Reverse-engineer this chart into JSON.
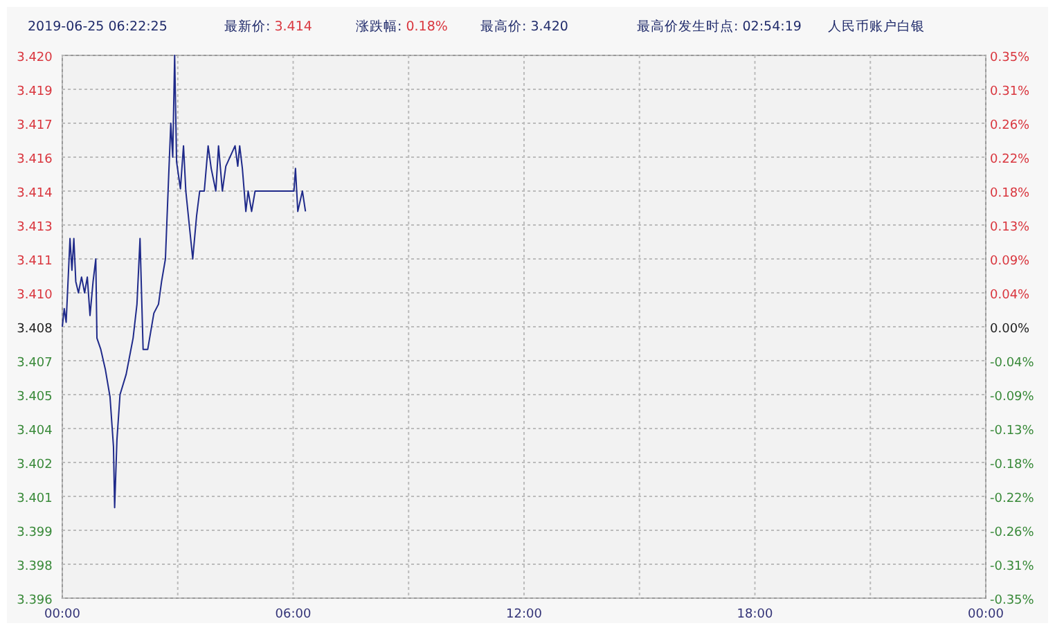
{
  "chart_data": {
    "type": "line",
    "title": "人民币账户白银",
    "annotations": [
      "2019-06-25 06:22:25",
      "最新价: 3.414",
      "涨跌幅: 0.18%",
      "最高价: 3.420",
      "最高价发生时点: 02:54:19"
    ],
    "xlim": [
      0,
      24
    ],
    "xticks": [
      {
        "value": 0,
        "label": "00:00"
      },
      {
        "value": 3,
        "label": null
      },
      {
        "value": 6,
        "label": "06:00"
      },
      {
        "value": 9,
        "label": null
      },
      {
        "value": 12,
        "label": "12:00"
      },
      {
        "value": 15,
        "label": null
      },
      {
        "value": 18,
        "label": "18:00"
      },
      {
        "value": 21,
        "label": null
      },
      {
        "value": 24,
        "label": "00:00"
      }
    ],
    "ylim": [
      3.396,
      3.42
    ],
    "yticks": [
      {
        "value": 3.396,
        "label": "3.396"
      },
      {
        "value": 3.3975,
        "label": "3.398"
      },
      {
        "value": 3.399,
        "label": "3.399"
      },
      {
        "value": 3.4005,
        "label": "3.401"
      },
      {
        "value": 3.402,
        "label": "3.402"
      },
      {
        "value": 3.4035,
        "label": "3.404"
      },
      {
        "value": 3.405,
        "label": "3.405"
      },
      {
        "value": 3.4065,
        "label": "3.407"
      },
      {
        "value": 3.408,
        "label": "3.408"
      },
      {
        "value": 3.4095,
        "label": "3.410"
      },
      {
        "value": 3.411,
        "label": "3.411"
      },
      {
        "value": 3.4125,
        "label": "3.413"
      },
      {
        "value": 3.414,
        "label": "3.414"
      },
      {
        "value": 3.4155,
        "label": "3.416"
      },
      {
        "value": 3.417,
        "label": "3.417"
      },
      {
        "value": 3.4185,
        "label": "3.419"
      },
      {
        "value": 3.42,
        "label": "3.420"
      }
    ],
    "y2lim": [
      -0.35,
      0.35
    ],
    "y2ticks": [
      {
        "value": -0.35,
        "label": "-0.35%"
      },
      {
        "value": -0.30625,
        "label": "-0.31%"
      },
      {
        "value": -0.2625,
        "label": "-0.26%"
      },
      {
        "value": -0.21875,
        "label": "-0.22%"
      },
      {
        "value": -0.175,
        "label": "-0.18%"
      },
      {
        "value": -0.13125,
        "label": "-0.13%"
      },
      {
        "value": -0.0875,
        "label": "-0.09%"
      },
      {
        "value": -0.04375,
        "label": "-0.04%"
      },
      {
        "value": 0,
        "label": "0.00%"
      },
      {
        "value": 0.04375,
        "label": "0.04%"
      },
      {
        "value": 0.0875,
        "label": "0.09%"
      },
      {
        "value": 0.13125,
        "label": "0.13%"
      },
      {
        "value": 0.175,
        "label": "0.18%"
      },
      {
        "value": 0.21875,
        "label": "0.22%"
      },
      {
        "value": 0.2625,
        "label": "0.26%"
      },
      {
        "value": 0.30625,
        "label": "0.31%"
      },
      {
        "value": 0.35,
        "label": "0.35%"
      }
    ],
    "grid": true,
    "series": [
      {
        "color": "#1f2a8a",
        "x": [
          0,
          0.05,
          0.1,
          0.2,
          0.25,
          0.3,
          0.35,
          0.42,
          0.5,
          0.58,
          0.65,
          0.72,
          0.8,
          0.87,
          0.9,
          1.0,
          1.12,
          1.24,
          1.33,
          1.36,
          1.42,
          1.5,
          1.66,
          1.84,
          1.94,
          2.02,
          2.1,
          2.22,
          2.38,
          2.5,
          2.58,
          2.68,
          2.77,
          2.82,
          2.87,
          2.92,
          2.97,
          3.07,
          3.15,
          3.21,
          3.39,
          3.49,
          3.57,
          3.69,
          3.79,
          3.87,
          3.99,
          4.06,
          4.16,
          4.25,
          4.49,
          4.56,
          4.61,
          4.68,
          4.77,
          4.83,
          4.92,
          5.01,
          6.02,
          6.06,
          6.12,
          6.24,
          6.32
        ],
        "values": [
          3.408,
          3.4088,
          3.4082,
          3.4119,
          3.4105,
          3.4119,
          3.41,
          3.4095,
          3.4102,
          3.4095,
          3.4102,
          3.4085,
          3.41,
          3.411,
          3.4075,
          3.407,
          3.4061,
          3.4049,
          3.4027,
          3.4,
          3.403,
          3.405,
          3.4059,
          3.4075,
          3.409,
          3.4119,
          3.407,
          3.407,
          3.4086,
          3.409,
          3.41,
          3.411,
          3.4149,
          3.417,
          3.4155,
          3.42,
          3.4153,
          3.4141,
          3.416,
          3.414,
          3.411,
          3.4129,
          3.414,
          3.414,
          3.416,
          3.415,
          3.414,
          3.416,
          3.414,
          3.4151,
          3.416,
          3.4151,
          3.416,
          3.415,
          3.4131,
          3.414,
          3.4131,
          3.414,
          3.414,
          3.415,
          3.4131,
          3.414,
          3.4131
        ]
      }
    ]
  }
}
